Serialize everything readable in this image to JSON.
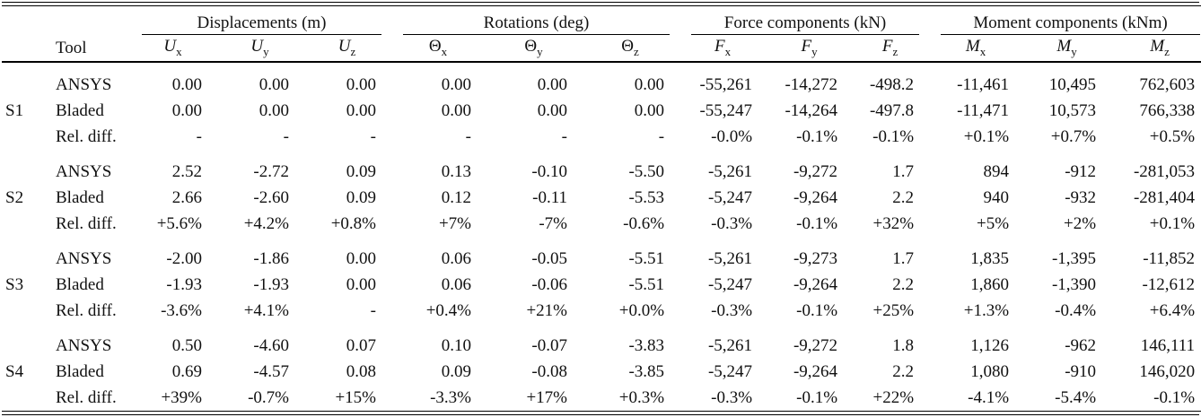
{
  "table": {
    "tool_header": "Tool",
    "groups": [
      {
        "label": "Displacements (m)",
        "cols": [
          [
            "U",
            "x"
          ],
          [
            "U",
            "y"
          ],
          [
            "U",
            "z"
          ]
        ]
      },
      {
        "label": "Rotations (deg)",
        "cols": [
          [
            "Θ",
            "x"
          ],
          [
            "Θ",
            "y"
          ],
          [
            "Θ",
            "z"
          ]
        ]
      },
      {
        "label": "Force components (kN)",
        "cols": [
          [
            "F",
            "x"
          ],
          [
            "F",
            "y"
          ],
          [
            "F",
            "z"
          ]
        ]
      },
      {
        "label": "Moment components (kNm)",
        "cols": [
          [
            "M",
            "x"
          ],
          [
            "M",
            "y"
          ],
          [
            "M",
            "z"
          ]
        ]
      }
    ],
    "blocks": [
      {
        "id": "S1",
        "rows": [
          {
            "tool": "ANSYS",
            "values": [
              "0.00",
              "0.00",
              "0.00",
              "0.00",
              "0.00",
              "0.00",
              "-55,261",
              "-14,272",
              "-498.2",
              "-11,461",
              "10,495",
              "762,603"
            ]
          },
          {
            "tool": "Bladed",
            "values": [
              "0.00",
              "0.00",
              "0.00",
              "0.00",
              "0.00",
              "0.00",
              "-55,247",
              "-14,264",
              "-497.8",
              "-11,471",
              "10,573",
              "766,338"
            ]
          },
          {
            "tool": "Rel. diff.",
            "values": [
              "-",
              "-",
              "-",
              "-",
              "-",
              "-",
              "-0.0%",
              "-0.1%",
              "-0.1%",
              "+0.1%",
              "+0.7%",
              "+0.5%"
            ]
          }
        ]
      },
      {
        "id": "S2",
        "rows": [
          {
            "tool": "ANSYS",
            "values": [
              "2.52",
              "-2.72",
              "0.09",
              "0.13",
              "-0.10",
              "-5.50",
              "-5,261",
              "-9,272",
              "1.7",
              "894",
              "-912",
              "-281,053"
            ]
          },
          {
            "tool": "Bladed",
            "values": [
              "2.66",
              "-2.60",
              "0.09",
              "0.12",
              "-0.11",
              "-5.53",
              "-5,247",
              "-9,264",
              "2.2",
              "940",
              "-932",
              "-281,404"
            ]
          },
          {
            "tool": "Rel. diff.",
            "values": [
              "+5.6%",
              "+4.2%",
              "+0.8%",
              "+7%",
              "-7%",
              "-0.6%",
              "-0.3%",
              "-0.1%",
              "+32%",
              "+5%",
              "+2%",
              "+0.1%"
            ]
          }
        ]
      },
      {
        "id": "S3",
        "rows": [
          {
            "tool": "ANSYS",
            "values": [
              "-2.00",
              "-1.86",
              "0.00",
              "0.06",
              "-0.05",
              "-5.51",
              "-5,261",
              "-9,273",
              "1.7",
              "1,835",
              "-1,395",
              "-11,852"
            ]
          },
          {
            "tool": "Bladed",
            "values": [
              "-1.93",
              "-1.93",
              "0.00",
              "0.06",
              "-0.06",
              "-5.51",
              "-5,247",
              "-9,264",
              "2.2",
              "1,860",
              "-1,390",
              "-12,612"
            ]
          },
          {
            "tool": "Rel. diff.",
            "values": [
              "-3.6%",
              "+4.1%",
              "-",
              "+0.4%",
              "+21%",
              "+0.0%",
              "-0.3%",
              "-0.1%",
              "+25%",
              "+1.3%",
              "-0.4%",
              "+6.4%"
            ]
          }
        ]
      },
      {
        "id": "S4",
        "rows": [
          {
            "tool": "ANSYS",
            "values": [
              "0.50",
              "-4.60",
              "0.07",
              "0.10",
              "-0.07",
              "-3.83",
              "-5,261",
              "-9,272",
              "1.8",
              "1,126",
              "-962",
              "146,111"
            ]
          },
          {
            "tool": "Bladed",
            "values": [
              "0.69",
              "-4.57",
              "0.08",
              "0.09",
              "-0.08",
              "-3.85",
              "-5,247",
              "-9,264",
              "2.2",
              "1,080",
              "-910",
              "146,020"
            ]
          },
          {
            "tool": "Rel. diff.",
            "values": [
              "+39%",
              "-0.7%",
              "+15%",
              "-3.3%",
              "+17%",
              "+0.3%",
              "-0.3%",
              "-0.1%",
              "+22%",
              "-4.1%",
              "-5.4%",
              "-0.1%"
            ]
          }
        ]
      }
    ]
  }
}
